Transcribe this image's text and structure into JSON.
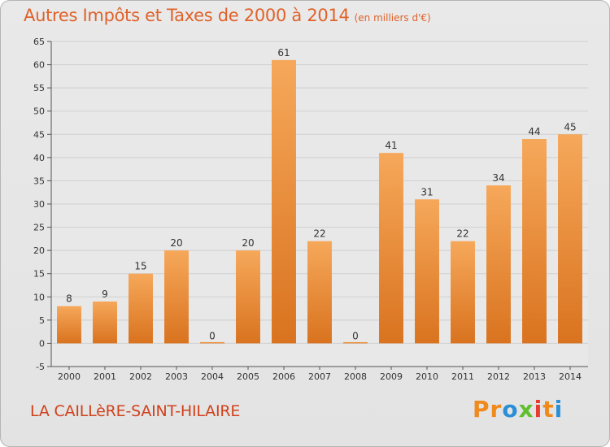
{
  "title": "Autres Impôts et Taxes de 2000 à 2014",
  "unit": "(en milliers d'€)",
  "city": "LA CAILLèRE-SAINT-HILAIRE",
  "logo": {
    "p1": "Pr",
    "p2": "o",
    "p3": "x",
    "p4": "i",
    "p5": "t",
    "p6": "i"
  },
  "colors": {
    "bar_light": "#f6a85a",
    "bar_dark": "#d9731f",
    "title": "#e0622a"
  },
  "chart_data": {
    "type": "bar",
    "categories": [
      "2000",
      "2001",
      "2002",
      "2003",
      "2004",
      "2005",
      "2006",
      "2007",
      "2008",
      "2009",
      "2010",
      "2011",
      "2012",
      "2013",
      "2014"
    ],
    "values": [
      8,
      9,
      15,
      20,
      0,
      20,
      61,
      22,
      0,
      41,
      31,
      22,
      34,
      44,
      45
    ],
    "ylim": [
      -5,
      65
    ],
    "yticks": [
      -5,
      0,
      5,
      10,
      15,
      20,
      25,
      30,
      35,
      40,
      45,
      50,
      55,
      60,
      65
    ],
    "grid": true
  }
}
